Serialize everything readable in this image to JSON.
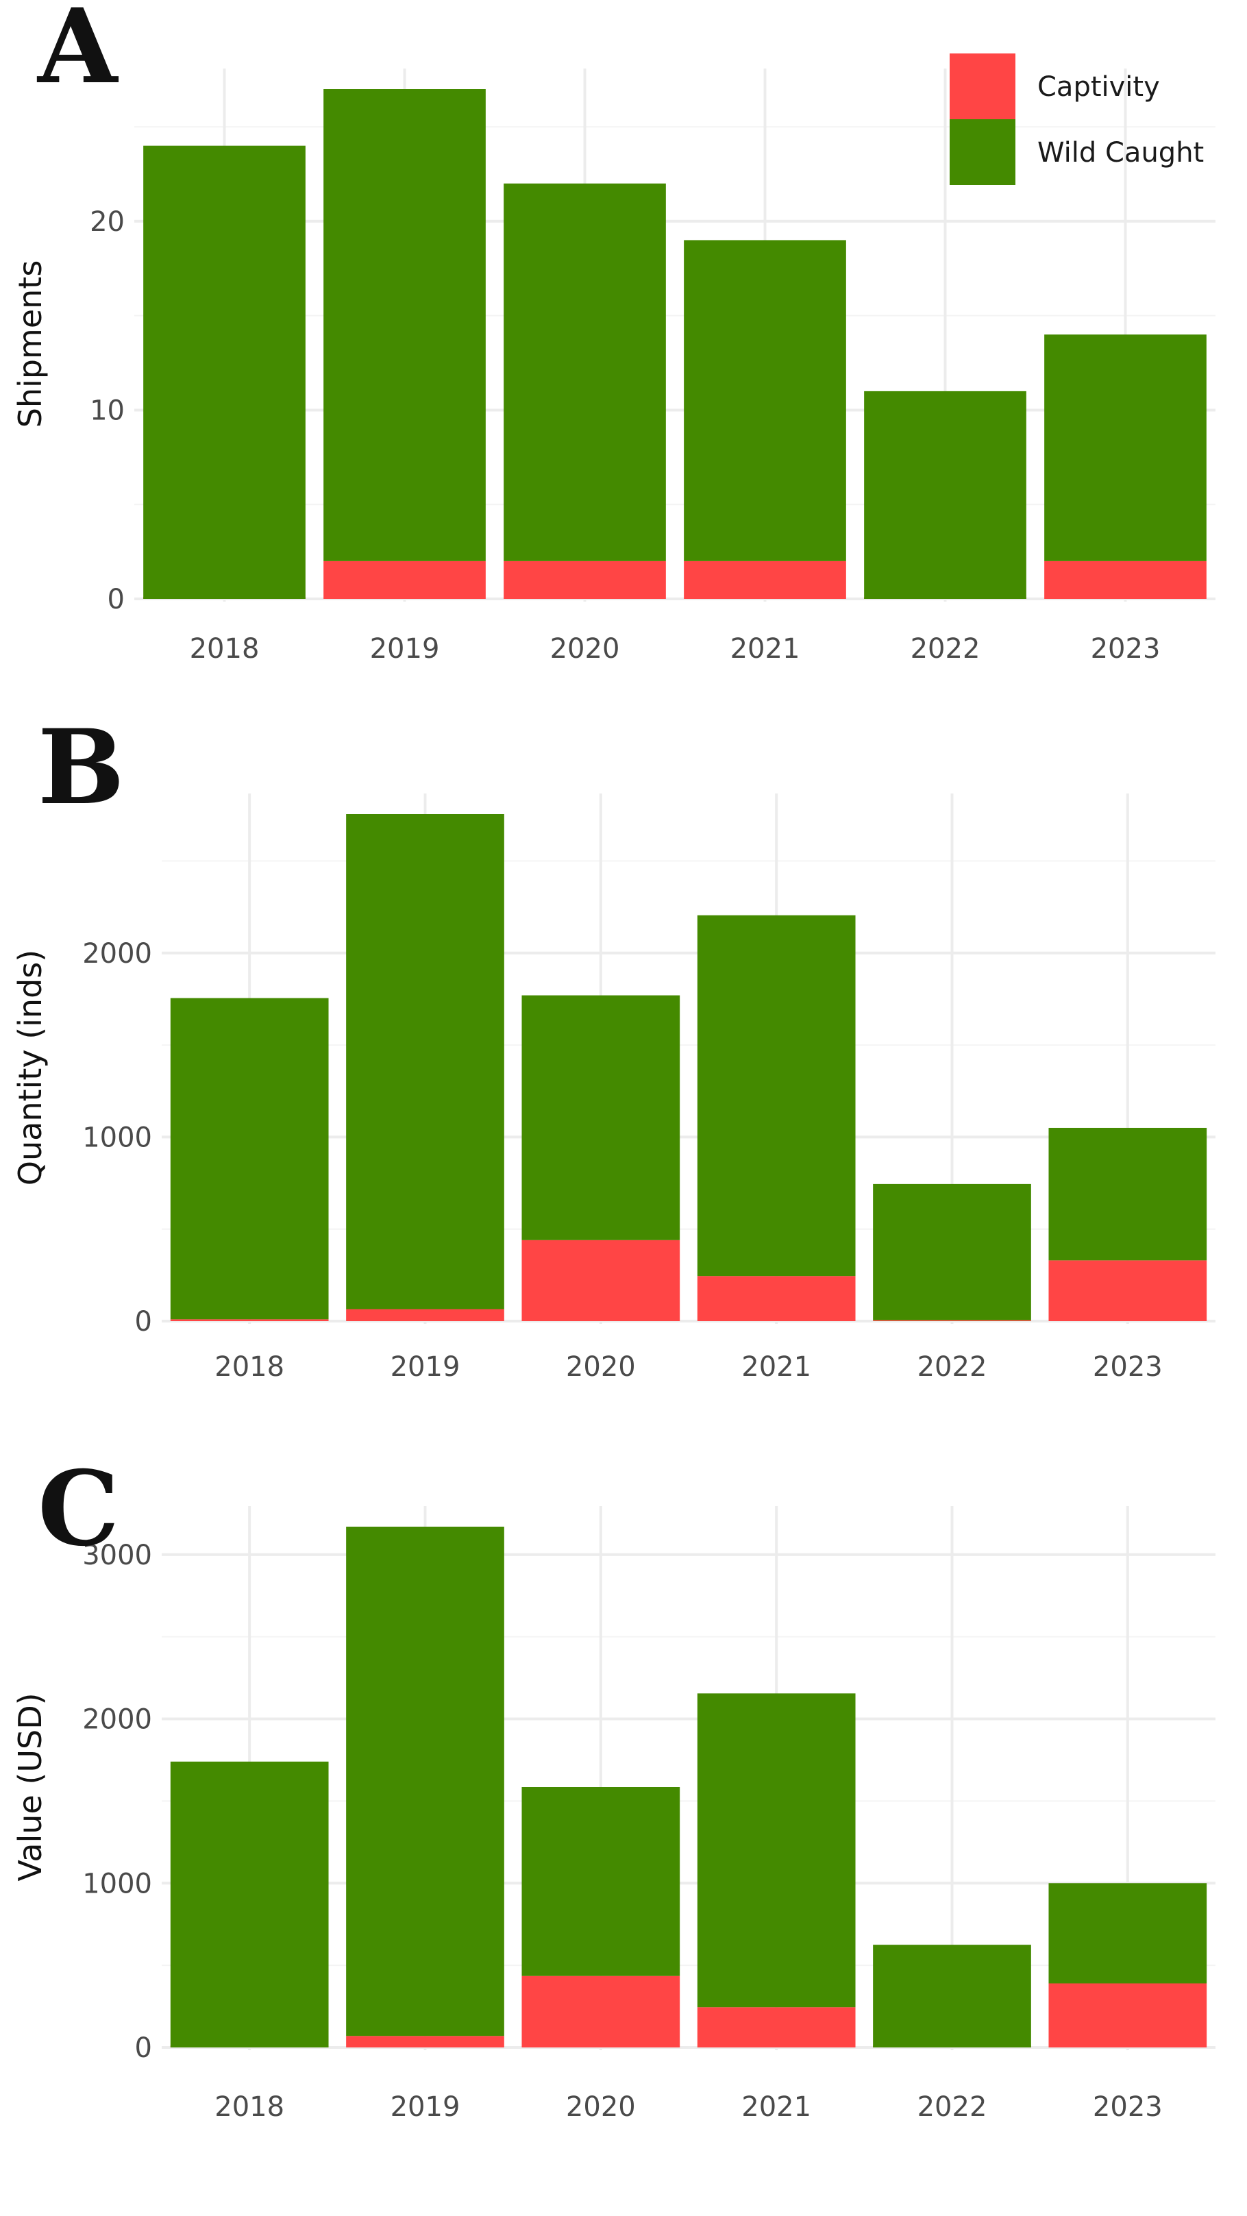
{
  "colors": {
    "Captivity": "#ff4545",
    "Wild Caught": "#448a00",
    "grid_major": "#ececec",
    "grid_minor": "#f4f4f4"
  },
  "legend": {
    "entries": [
      "Captivity",
      "Wild Caught"
    ],
    "position": "top-right of panel A"
  },
  "chart_data": [
    {
      "panel": "A",
      "type": "bar",
      "stacked": true,
      "categories": [
        "2018",
        "2019",
        "2020",
        "2021",
        "2022",
        "2023"
      ],
      "series": [
        {
          "name": "Captivity",
          "values": [
            0,
            2,
            2,
            2,
            0,
            2
          ]
        },
        {
          "name": "Wild Caught",
          "values": [
            24,
            25,
            20,
            17,
            11,
            12
          ]
        }
      ],
      "xlabel": "",
      "ylabel": "Shipments",
      "ylim": [
        0,
        27
      ],
      "yticks": [
        0,
        10,
        20
      ],
      "grid": true
    },
    {
      "panel": "B",
      "type": "bar",
      "stacked": true,
      "categories": [
        "2018",
        "2019",
        "2020",
        "2021",
        "2022",
        "2023"
      ],
      "series": [
        {
          "name": "Captivity",
          "values": [
            10,
            65,
            440,
            245,
            5,
            330
          ]
        },
        {
          "name": "Wild Caught",
          "values": [
            1745,
            2690,
            1330,
            1960,
            740,
            720
          ]
        }
      ],
      "xlabel": "",
      "ylabel": "Quantity (inds)",
      "ylim": [
        0,
        2755
      ],
      "yticks": [
        0,
        1000,
        2000
      ],
      "grid": true
    },
    {
      "panel": "C",
      "type": "bar",
      "stacked": true,
      "categories": [
        "2018",
        "2019",
        "2020",
        "2021",
        "2022",
        "2023"
      ],
      "series": [
        {
          "name": "Captivity",
          "values": [
            0,
            70,
            435,
            245,
            0,
            390
          ]
        },
        {
          "name": "Wild Caught",
          "values": [
            1740,
            3100,
            1150,
            1910,
            625,
            610
          ]
        }
      ],
      "xlabel": "",
      "ylabel": "Value (USD)",
      "ylim": [
        0,
        3170
      ],
      "yticks": [
        0,
        1000,
        2000,
        3000
      ],
      "grid": true
    }
  ]
}
